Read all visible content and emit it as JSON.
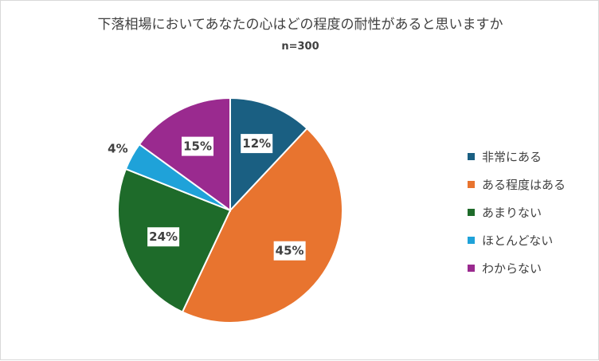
{
  "chart_data": {
    "type": "pie",
    "title": "下落相場においてあなたの心はどの程度の耐性があると思いますか",
    "subtitle": "n=300",
    "categories": [
      "非常にある",
      "ある程度はある",
      "あまりない",
      "ほとんどない",
      "わからない"
    ],
    "values": [
      12,
      45,
      24,
      4,
      15
    ],
    "value_labels": [
      "12%",
      "45%",
      "24%",
      "4%",
      "15%"
    ],
    "colors": [
      "#1a5f82",
      "#e8742f",
      "#1e6b2a",
      "#1fa2d9",
      "#9a2a8f"
    ],
    "start_angle_deg": 0,
    "direction": "clockwise",
    "legend_position": "right"
  }
}
